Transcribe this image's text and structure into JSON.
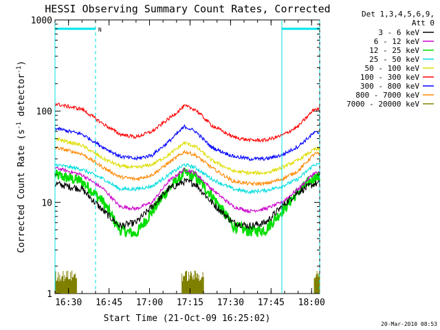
{
  "chart_data": {
    "type": "line",
    "title": "HESSI Observing Summary Count Rates, Corrected",
    "xlabel": "Start Time (21-Oct-09 16:25:02)",
    "ylabel_main": "Corrected Count Rate (s",
    "ylabel_sup1": "-1",
    "ylabel_mid": " detector",
    "ylabel_sup2": "-1",
    "ylabel_end": ")",
    "yscale": "log",
    "ylim": [
      1,
      1000
    ],
    "xlim_min": [
      0,
      98
    ],
    "x_tick_labels": [
      "16:30",
      "16:45",
      "17:00",
      "17:15",
      "17:30",
      "17:45",
      "18:00"
    ],
    "x_tick_minutes": [
      5,
      20,
      35,
      50,
      65,
      80,
      95
    ],
    "y_tick_labels": [
      "1",
      "10",
      "100",
      "1000"
    ],
    "y_tick_values": [
      1,
      10,
      100,
      1000
    ],
    "grid": false,
    "legend_header": [
      "Det 1,3,4,5,6,9,",
      "Att 0"
    ],
    "legend_placement": "right",
    "series": [
      {
        "name": "3 - 6 keV",
        "color": "#000000",
        "points": [
          [
            0,
            16
          ],
          [
            10,
            14
          ],
          [
            18,
            8
          ],
          [
            24,
            5.5
          ],
          [
            30,
            6
          ],
          [
            36,
            9
          ],
          [
            42,
            14
          ],
          [
            48,
            17
          ],
          [
            52,
            16
          ],
          [
            58,
            10
          ],
          [
            66,
            6
          ],
          [
            72,
            5.5
          ],
          [
            78,
            6
          ],
          [
            84,
            9
          ],
          [
            90,
            13
          ],
          [
            96,
            16
          ]
        ]
      },
      {
        "name": "6 - 12 keV",
        "color": "#cc00cc",
        "points": [
          [
            0,
            24
          ],
          [
            10,
            20
          ],
          [
            18,
            14
          ],
          [
            24,
            9
          ],
          [
            30,
            8.5
          ],
          [
            36,
            10
          ],
          [
            42,
            17
          ],
          [
            48,
            23
          ],
          [
            52,
            21
          ],
          [
            58,
            14
          ],
          [
            66,
            9
          ],
          [
            72,
            8
          ],
          [
            78,
            8.5
          ],
          [
            84,
            10
          ],
          [
            90,
            14
          ],
          [
            96,
            21
          ]
        ]
      },
      {
        "name": "12 - 25 keV",
        "color": "#00dd00",
        "points": [
          [
            0,
            20
          ],
          [
            10,
            17
          ],
          [
            18,
            10
          ],
          [
            24,
            5
          ],
          [
            30,
            4.5
          ],
          [
            36,
            8
          ],
          [
            42,
            14
          ],
          [
            48,
            21
          ],
          [
            52,
            19
          ],
          [
            58,
            12
          ],
          [
            66,
            5.5
          ],
          [
            72,
            4.8
          ],
          [
            78,
            5
          ],
          [
            84,
            8
          ],
          [
            90,
            13
          ],
          [
            96,
            19
          ]
        ]
      },
      {
        "name": "25 - 50 keV",
        "color": "#00dddd",
        "points": [
          [
            0,
            26
          ],
          [
            10,
            23
          ],
          [
            18,
            18
          ],
          [
            24,
            14
          ],
          [
            30,
            14
          ],
          [
            36,
            15
          ],
          [
            42,
            20
          ],
          [
            48,
            26
          ],
          [
            52,
            24
          ],
          [
            58,
            18
          ],
          [
            66,
            14
          ],
          [
            72,
            13
          ],
          [
            78,
            13.5
          ],
          [
            84,
            15
          ],
          [
            90,
            18
          ],
          [
            96,
            26
          ]
        ]
      },
      {
        "name": "50 - 100 keV",
        "color": "#dddd00",
        "points": [
          [
            0,
            50
          ],
          [
            10,
            42
          ],
          [
            18,
            30
          ],
          [
            24,
            25
          ],
          [
            30,
            24
          ],
          [
            36,
            26
          ],
          [
            42,
            33
          ],
          [
            48,
            45
          ],
          [
            52,
            41
          ],
          [
            58,
            29
          ],
          [
            66,
            22
          ],
          [
            72,
            21
          ],
          [
            78,
            21
          ],
          [
            84,
            24
          ],
          [
            90,
            29
          ],
          [
            96,
            38
          ]
        ]
      },
      {
        "name": "100 - 300 keV",
        "color": "#ff0000",
        "points": [
          [
            0,
            120
          ],
          [
            10,
            105
          ],
          [
            18,
            72
          ],
          [
            24,
            56
          ],
          [
            30,
            52
          ],
          [
            36,
            60
          ],
          [
            42,
            82
          ],
          [
            48,
            114
          ],
          [
            52,
            104
          ],
          [
            58,
            70
          ],
          [
            66,
            52
          ],
          [
            72,
            48
          ],
          [
            78,
            48
          ],
          [
            84,
            54
          ],
          [
            90,
            68
          ],
          [
            96,
            105
          ]
        ]
      },
      {
        "name": "300 - 800 keV",
        "color": "#0000ff",
        "points": [
          [
            0,
            65
          ],
          [
            10,
            56
          ],
          [
            18,
            40
          ],
          [
            24,
            32
          ],
          [
            30,
            30
          ],
          [
            36,
            33
          ],
          [
            42,
            46
          ],
          [
            48,
            68
          ],
          [
            52,
            60
          ],
          [
            58,
            40
          ],
          [
            66,
            32
          ],
          [
            72,
            30
          ],
          [
            78,
            30
          ],
          [
            84,
            33
          ],
          [
            90,
            41
          ],
          [
            96,
            58
          ]
        ]
      },
      {
        "name": "800 - 7000 keV",
        "color": "#ff8800",
        "points": [
          [
            0,
            40
          ],
          [
            10,
            34
          ],
          [
            18,
            24
          ],
          [
            24,
            19
          ],
          [
            30,
            18
          ],
          [
            36,
            20
          ],
          [
            42,
            27
          ],
          [
            48,
            36
          ],
          [
            52,
            33
          ],
          [
            58,
            24
          ],
          [
            66,
            17
          ],
          [
            72,
            16
          ],
          [
            78,
            16
          ],
          [
            84,
            18
          ],
          [
            90,
            22
          ],
          [
            96,
            34
          ]
        ]
      },
      {
        "name": "7000 - 20000 keV",
        "color": "#808000",
        "points": [
          [
            0,
            1.8
          ],
          [
            8,
            1.5
          ],
          [
            12,
            1.2
          ]
        ]
      }
    ],
    "attenuator_bands": [
      {
        "x_start": 0,
        "x_end": 15,
        "label": "N"
      },
      {
        "x_start": 84,
        "x_end": 98,
        "label": ""
      }
    ],
    "attenuator_band_value": 800,
    "night_lines_dashed": [
      15,
      98
    ],
    "night_lines_solid": [
      0,
      84
    ],
    "low_energy_bursts": [
      [
        0,
        8
      ],
      [
        47,
        55
      ],
      [
        96,
        98
      ]
    ],
    "low_energy_burst_top": 1.8
  },
  "footer": {
    "timestamp": "20-Mar-2010 08:53"
  }
}
